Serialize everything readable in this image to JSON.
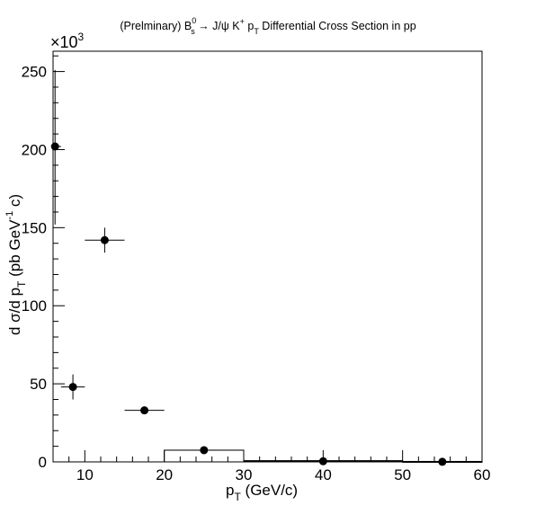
{
  "chart_data": {
    "type": "scatter",
    "title": "(Preliminary) B_s^0 → J/ψ K^+ p_T Differential Cross Section in pp",
    "title_parts": {
      "prefix": "(Prelminary) B",
      "b_sup": "0",
      "b_sub": "s",
      "arrow_part": " → J/ψ K",
      "k_sup": "+",
      "pt_base": " p",
      "pt_sub": "T",
      "suffix": " Differential Cross Section in pp"
    },
    "xlabel": {
      "base": "p",
      "sub": "T",
      "rest": " (GeV/c)"
    },
    "ylabel": {
      "part1": "d σ/d p",
      "sub": "T",
      "part2": "  (pb GeV",
      "sup": "-1",
      "part3": " c)"
    },
    "y_multiplier": {
      "base": "×10",
      "exp": "3"
    },
    "xlim": [
      6,
      60
    ],
    "ylim": [
      0,
      263
    ],
    "x_ticks": [
      10,
      20,
      30,
      40,
      50,
      60
    ],
    "y_ticks": [
      0,
      50,
      100,
      150,
      200,
      250
    ],
    "x_tick_labels": [
      "10",
      "20",
      "30",
      "40",
      "50",
      "60"
    ],
    "y_tick_labels": [
      "0",
      "50",
      "100",
      "150",
      "200",
      "250"
    ],
    "points": [
      {
        "x": 6.25,
        "xlo": 6,
        "xhi": 7,
        "y": 202,
        "ylo": 152,
        "yhi": 251
      },
      {
        "x": 8.5,
        "xlo": 7,
        "xhi": 10,
        "y": 48,
        "ylo": 40,
        "yhi": 56
      },
      {
        "x": 12.5,
        "xlo": 10,
        "xhi": 15,
        "y": 142,
        "ylo": 134,
        "yhi": 150
      },
      {
        "x": 17.5,
        "xlo": 15,
        "xhi": 20,
        "y": 33,
        "ylo": 31,
        "yhi": 35
      },
      {
        "x": 25,
        "xlo": 20,
        "xhi": 30,
        "y": 7.5,
        "ylo": 6.5,
        "yhi": 8.5
      },
      {
        "x": 40,
        "xlo": 30,
        "xhi": 50,
        "y": 0.4,
        "ylo": 0.2,
        "yhi": 0.6
      },
      {
        "x": 55,
        "xlo": 50,
        "xhi": 60,
        "y": 0.05,
        "ylo": 0.0,
        "yhi": 0.1
      }
    ],
    "systematic_boxes": [
      {
        "xlo": 20,
        "xhi": 30,
        "ylo": 0,
        "yhi": 7.5
      },
      {
        "xlo": 30,
        "xhi": 50,
        "ylo": 0,
        "yhi": 0.8
      },
      {
        "xlo": 50,
        "xhi": 60,
        "ylo": 0,
        "yhi": 0.3
      }
    ],
    "grid": false,
    "legend": "none"
  }
}
